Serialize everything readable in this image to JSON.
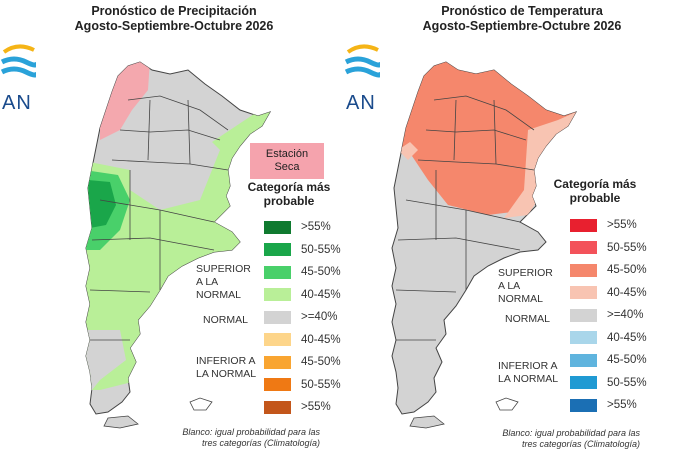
{
  "panels": [
    {
      "title_line1": "Pronóstico de Precipitación",
      "title_line2": "Agosto-Septiembre-Octubre 2026",
      "logo_text": "AN",
      "dry_station_label": "Estación Seca",
      "category_title": "Categoría más probable",
      "group_labels": {
        "above": "SUPERIOR A LA NORMAL",
        "normal": "NORMAL",
        "below": "INFERIOR A LA NORMAL"
      },
      "legend": [
        {
          "label": ">55%",
          "color": "#0f7a2f"
        },
        {
          "label": "50-55%",
          "color": "#1aa64a"
        },
        {
          "label": "45-50%",
          "color": "#49d06a"
        },
        {
          "label": "40-45%",
          "color": "#b9ef98"
        },
        {
          "label": ">=40%",
          "color": "#d3d3d3"
        },
        {
          "label": "40-45%",
          "color": "#fdd58a"
        },
        {
          "label": "45-50%",
          "color": "#f9a531"
        },
        {
          "label": "50-55%",
          "color": "#ef7914"
        },
        {
          "label": ">55%",
          "color": "#c3561b"
        }
      ],
      "note": "Blanco: igual probabilidad para las tres categorías (Climatología)"
    },
    {
      "title_line1": "Pronóstico de Temperatura",
      "title_line2": "Agosto-Septiembre-Octubre 2026",
      "logo_text": "AN",
      "category_title": "Categoría más probable",
      "group_labels": {
        "above": "SUPERIOR A LA NORMAL",
        "normal": "NORMAL",
        "below": "INFERIOR A LA NORMAL"
      },
      "legend": [
        {
          "label": ">55%",
          "color": "#e8202f"
        },
        {
          "label": "50-55%",
          "color": "#f3525a"
        },
        {
          "label": "45-50%",
          "color": "#f5876c"
        },
        {
          "label": "40-45%",
          "color": "#f8c4b2"
        },
        {
          "label": ">=40%",
          "color": "#d3d3d3"
        },
        {
          "label": "40-45%",
          "color": "#a9d6ea"
        },
        {
          "label": "45-50%",
          "color": "#5fb4de"
        },
        {
          "label": "50-55%",
          "color": "#1f9ad3"
        },
        {
          "label": ">55%",
          "color": "#1b6fb4"
        }
      ],
      "note": "Blanco: igual probabilidad para las tres categorías (Climatología)"
    }
  ]
}
